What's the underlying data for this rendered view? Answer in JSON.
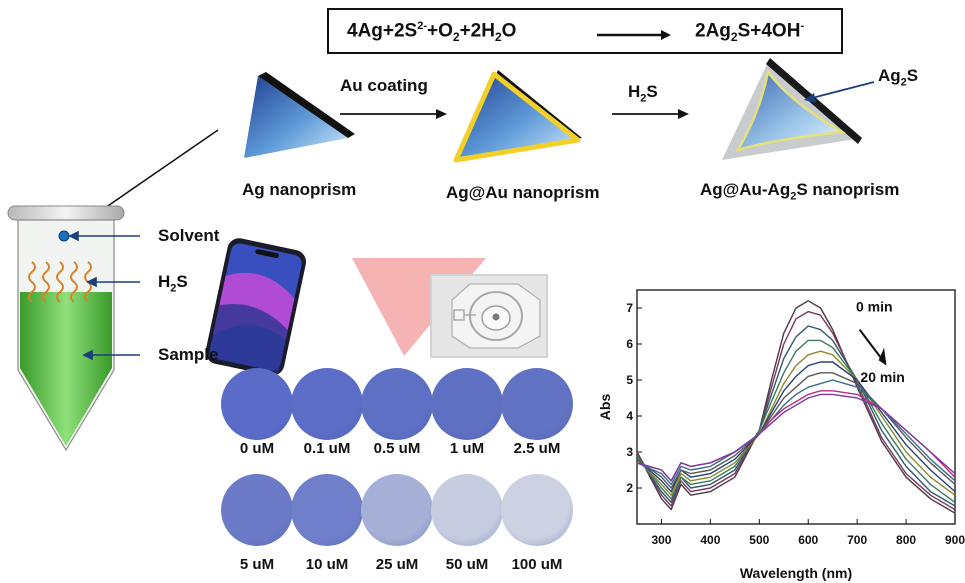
{
  "equation": {
    "left": [
      "4Ag+2S",
      "2-",
      "+O",
      "2",
      "+2H",
      "2",
      "O"
    ],
    "right": [
      "2Ag",
      "2",
      "S+4OH",
      "-"
    ]
  },
  "stages": [
    {
      "label": "Ag nanoprism"
    },
    {
      "label": "Ag@Au nanoprism"
    },
    {
      "label_parts": [
        "Ag@Au-Ag",
        "2",
        "S nanoprism"
      ]
    }
  ],
  "steps": {
    "au_coating": "Au coating",
    "h2s": [
      "H",
      "2",
      "S"
    ],
    "ag2s_callout": [
      "Ag",
      "2",
      "S"
    ]
  },
  "tube_labels": {
    "solvent": "Solvent",
    "h2s": [
      "H",
      "2",
      "S"
    ],
    "sample": "Sample"
  },
  "test_spots": [
    {
      "label": "0 uM",
      "color": "#5a6cc8"
    },
    {
      "label": "0.1 uM",
      "color": "#5b6dc6"
    },
    {
      "label": "0.5 uM",
      "color": "#5e70c4"
    },
    {
      "label": "1 uM",
      "color": "#5f70c3"
    },
    {
      "label": "2.5 uM",
      "color": "#6373c3"
    },
    {
      "label": "5 uM",
      "color": "#6b7bc8"
    },
    {
      "label": "10 uM",
      "color": "#6f7fc9"
    },
    {
      "label": "25 uM",
      "color": "#a6b0d6"
    },
    {
      "label": "50 uM",
      "color": "#c6cde0"
    },
    {
      "label": "100 uM",
      "color": "#cdd2e2"
    }
  ],
  "chart_data": {
    "type": "line",
    "xlabel": "Wavelength (nm)",
    "ylabel": "Abs",
    "xlim": [
      250,
      900
    ],
    "ylim": [
      1,
      7.5
    ],
    "x_ticks": [
      300,
      400,
      500,
      600,
      700,
      800,
      900
    ],
    "y_ticks": [
      2,
      3,
      4,
      5,
      6,
      7
    ],
    "annotations": [
      "0 min",
      "20 min"
    ],
    "x": [
      250,
      300,
      320,
      340,
      360,
      400,
      450,
      500,
      525,
      550,
      575,
      600,
      625,
      650,
      700,
      750,
      800,
      850,
      900
    ],
    "series": [
      {
        "color": "#4a3a4a",
        "values": [
          3.0,
          1.7,
          1.4,
          2.1,
          1.8,
          1.9,
          2.3,
          3.6,
          5.0,
          6.3,
          7.0,
          7.2,
          7.0,
          6.4,
          4.8,
          3.3,
          2.3,
          1.7,
          1.3
        ]
      },
      {
        "color": "#7a3a5a",
        "values": [
          3.0,
          1.8,
          1.5,
          2.2,
          1.9,
          2.0,
          2.4,
          3.6,
          4.8,
          6.0,
          6.7,
          6.9,
          6.8,
          6.3,
          4.9,
          3.4,
          2.4,
          1.8,
          1.4
        ]
      },
      {
        "color": "#2f5a6f",
        "values": [
          2.9,
          1.9,
          1.6,
          2.3,
          2.0,
          2.1,
          2.5,
          3.6,
          4.6,
          5.6,
          6.2,
          6.5,
          6.4,
          6.1,
          5.0,
          3.6,
          2.6,
          1.9,
          1.5
        ]
      },
      {
        "color": "#3f7a5a",
        "values": [
          2.9,
          2.0,
          1.7,
          2.3,
          2.1,
          2.2,
          2.6,
          3.6,
          4.4,
          5.2,
          5.8,
          6.1,
          6.1,
          5.9,
          5.0,
          3.8,
          2.8,
          2.1,
          1.6
        ]
      },
      {
        "color": "#8a8a2f",
        "values": [
          2.8,
          2.1,
          1.8,
          2.4,
          2.2,
          2.3,
          2.7,
          3.5,
          4.2,
          4.9,
          5.4,
          5.7,
          5.8,
          5.7,
          5.0,
          4.0,
          3.0,
          2.3,
          1.8
        ]
      },
      {
        "color": "#2a3f7a",
        "values": [
          2.8,
          2.2,
          1.9,
          2.5,
          2.3,
          2.4,
          2.8,
          3.5,
          4.1,
          4.7,
          5.1,
          5.4,
          5.5,
          5.5,
          5.0,
          4.1,
          3.2,
          2.5,
          1.9
        ]
      },
      {
        "color": "#5a5a5a",
        "values": [
          2.8,
          2.3,
          2.0,
          2.5,
          2.4,
          2.5,
          2.9,
          3.5,
          4.0,
          4.5,
          4.8,
          5.1,
          5.2,
          5.2,
          4.9,
          4.2,
          3.4,
          2.7,
          2.1
        ]
      },
      {
        "color": "#3a6f8a",
        "values": [
          2.7,
          2.4,
          2.1,
          2.6,
          2.5,
          2.6,
          3.0,
          3.5,
          3.9,
          4.3,
          4.6,
          4.8,
          4.9,
          5.0,
          4.8,
          4.2,
          3.5,
          2.8,
          2.2
        ]
      },
      {
        "color": "#b8307a",
        "values": [
          2.7,
          2.5,
          2.2,
          2.7,
          2.6,
          2.7,
          3.0,
          3.5,
          3.9,
          4.2,
          4.4,
          4.6,
          4.7,
          4.7,
          4.6,
          4.2,
          3.6,
          3.0,
          2.3
        ]
      },
      {
        "color": "#7a3aa8",
        "values": [
          2.7,
          2.5,
          2.2,
          2.7,
          2.6,
          2.7,
          3.0,
          3.5,
          3.8,
          4.1,
          4.3,
          4.5,
          4.6,
          4.6,
          4.5,
          4.2,
          3.6,
          3.0,
          2.4
        ]
      }
    ]
  }
}
